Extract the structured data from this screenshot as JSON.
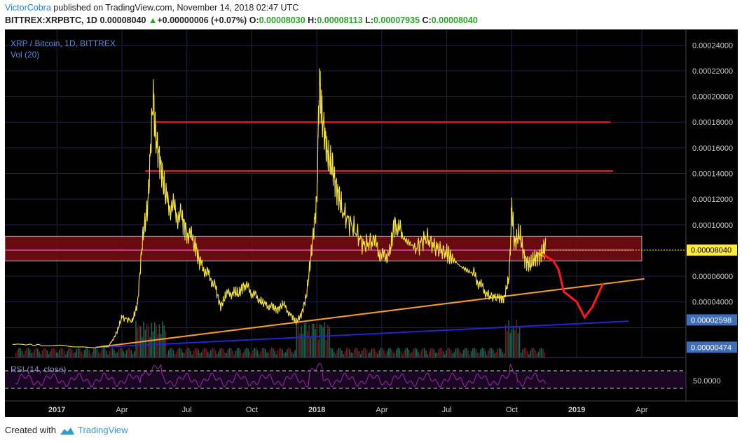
{
  "header": {
    "author": "VictorCobra",
    "published_text": " published on TradingView.com, November 14, 2018 02:47 UTC",
    "symbol": "BITTREX:XRPBTC, 1D",
    "last": "0.00008040",
    "arrow": "▲",
    "change": "+0.00000006 (+0.07%)",
    "o_label": "O:",
    "o_value": "0.00008030",
    "h_label": "H:",
    "h_value": "0.00008113",
    "l_label": "L:",
    "l_value": "0.00007935",
    "c_label": "C:",
    "c_value": "0.00008040"
  },
  "legend": {
    "title": "XRP / Bitcoin, 1D, BITTREX",
    "volume": "Vol (20)",
    "rsi": "RSI (14, close)"
  },
  "footer": {
    "created_with": "Created with",
    "brand": "TradingView"
  },
  "colors": {
    "background": "#000000",
    "grid": "#221f44",
    "price": "#f5e33a",
    "resistance": "#e21c24",
    "zone": "#7a0d13",
    "orange_trend": "#f39a2a",
    "blue_trend": "#2323d6",
    "projection": "#ff1a1a",
    "rsi": "#9c2ba8",
    "last_price_label": "#ffeb3b",
    "blue_label": "#3e6fb8"
  },
  "chart_data": {
    "type": "line",
    "title": "XRP / Bitcoin, 1D, BITTREX",
    "ylim": [
      0,
      0.00025
    ],
    "y_ticks": [
      "0.00024000",
      "0.00022000",
      "0.00020000",
      "0.00018000",
      "0.00016000",
      "0.00014000",
      "0.00012000",
      "0.00010000",
      "0.00006000",
      "0.00004000",
      "0.00002598",
      "0.00000474"
    ],
    "x_ticks": [
      "2017",
      "Apr",
      "Jul",
      "Oct",
      "2018",
      "Apr",
      "Jul",
      "Oct",
      "2019",
      "Apr"
    ],
    "last_price_label": "0.00008040",
    "series": [
      {
        "values": [
          [
            2016.83,
            7.2e-06
          ],
          [
            2016.95,
            6.2e-06
          ],
          [
            2017.05,
            5.4e-06
          ],
          [
            2017.15,
            4.6e-06
          ],
          [
            2017.2,
            5.6e-06
          ],
          [
            2017.23,
            1.6e-05
          ],
          [
            2017.25,
            2.8e-05
          ],
          [
            2017.29,
            2.5e-05
          ],
          [
            2017.31,
            3.8e-05
          ],
          [
            2017.33,
            9e-05
          ],
          [
            2017.35,
            0.000115
          ],
          [
            2017.37,
            0.0002
          ],
          [
            2017.38,
            0.00017
          ],
          [
            2017.4,
            0.000145
          ],
          [
            2017.42,
            0.00012
          ],
          [
            2017.45,
            0.000112
          ],
          [
            2017.48,
            0.000105
          ],
          [
            2017.5,
            9.5e-05
          ],
          [
            2017.53,
            8.6e-05
          ],
          [
            2017.55,
            7e-05
          ],
          [
            2017.58,
            6.2e-05
          ],
          [
            2017.61,
            5.2e-05
          ],
          [
            2017.63,
            3.6e-05
          ],
          [
            2017.65,
            4.5e-05
          ],
          [
            2017.68,
            4.8e-05
          ],
          [
            2017.7,
            4.6e-05
          ],
          [
            2017.72,
            5.4e-05
          ],
          [
            2017.75,
            4.7e-05
          ],
          [
            2017.78,
            4.2e-05
          ],
          [
            2017.8,
            3.8e-05
          ],
          [
            2017.83,
            3.6e-05
          ],
          [
            2017.85,
            3.4e-05
          ],
          [
            2017.87,
            3.8e-05
          ],
          [
            2017.9,
            3e-05
          ],
          [
            2017.92,
            2.4e-05
          ],
          [
            2017.94,
            3e-05
          ],
          [
            2017.96,
            4.5e-05
          ],
          [
            2017.98,
            8e-05
          ],
          [
            2018.0,
            0.00012
          ],
          [
            2018.01,
            0.000212
          ],
          [
            2018.02,
            0.000185
          ],
          [
            2018.04,
            0.000155
          ],
          [
            2018.06,
            0.000145
          ],
          [
            2018.08,
            0.000125
          ],
          [
            2018.1,
            0.00011
          ],
          [
            2018.14,
            9.8e-05
          ],
          [
            2018.18,
            8.4e-05
          ],
          [
            2018.22,
            8.7e-05
          ],
          [
            2018.25,
            7.5e-05
          ],
          [
            2018.28,
            7.8e-05
          ],
          [
            2018.3,
            0.000104
          ],
          [
            2018.33,
            9e-05
          ],
          [
            2018.38,
            8.2e-05
          ],
          [
            2018.42,
            9e-05
          ],
          [
            2018.46,
            8.2e-05
          ],
          [
            2018.5,
            7.8e-05
          ],
          [
            2018.55,
            6.8e-05
          ],
          [
            2018.6,
            6.2e-05
          ],
          [
            2018.63,
            5.3e-05
          ],
          [
            2018.66,
            4.5e-05
          ],
          [
            2018.7,
            4.3e-05
          ],
          [
            2018.72,
            4.2e-05
          ],
          [
            2018.74,
            6e-05
          ],
          [
            2018.75,
            0.000115
          ],
          [
            2018.76,
            8.5e-05
          ],
          [
            2018.78,
            9.3e-05
          ],
          [
            2018.8,
            7.4e-05
          ],
          [
            2018.82,
            6.8e-05
          ],
          [
            2018.84,
            7.4e-05
          ],
          [
            2018.86,
            7.7e-05
          ],
          [
            2018.88,
            8.2e-05
          ],
          [
            2018.87,
            8.04e-05
          ]
        ]
      }
    ],
    "horizontal_lines": [
      0.00018,
      0.000142
    ],
    "zone": [
      7.2e-05,
      9.1e-05
    ],
    "trend_lines": [
      {
        "color": "orange",
        "from": [
          2017.15,
          4.6e-06
        ],
        "to": [
          2019.26,
          5.8e-05
        ]
      },
      {
        "color": "blue",
        "from": [
          2017.15,
          4.6e-06
        ],
        "to": [
          2019.2,
          2.5e-05
        ]
      }
    ],
    "projection": [
      [
        2018.87,
        7.7e-05
      ],
      [
        2018.91,
        7.2e-05
      ],
      [
        2018.93,
        6.5e-05
      ],
      [
        2018.95,
        4.8e-05
      ],
      [
        2019.0,
        4e-05
      ],
      [
        2019.03,
        2.8e-05
      ],
      [
        2019.06,
        3.6e-05
      ],
      [
        2019.1,
        5.4e-05
      ]
    ]
  }
}
